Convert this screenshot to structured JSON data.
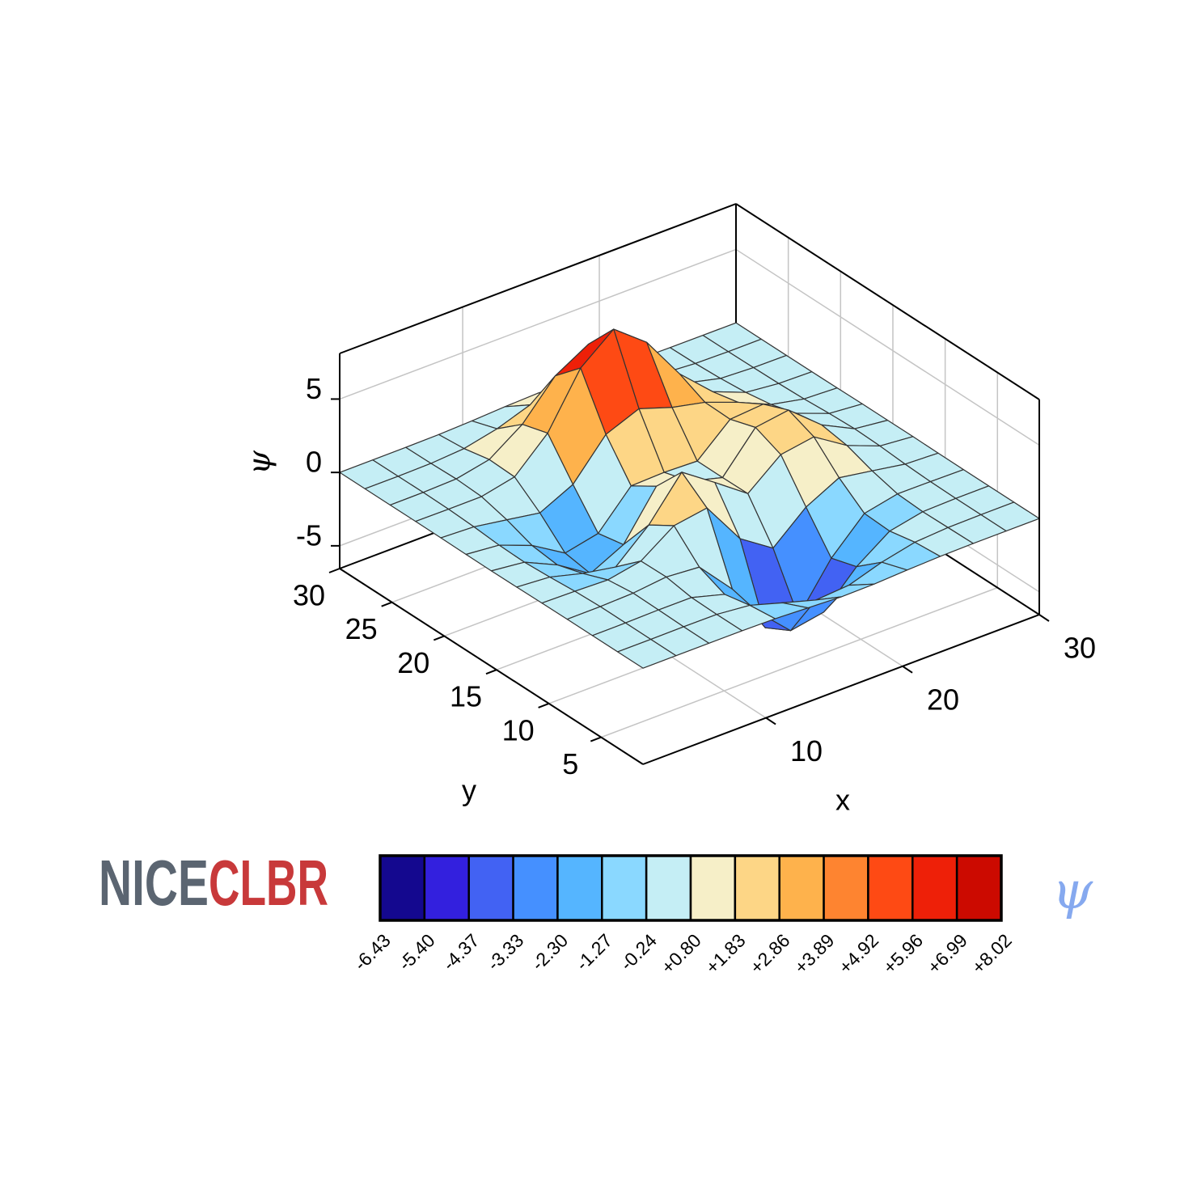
{
  "chart_data": {
    "type": "surface",
    "x": [
      1,
      3.42,
      5.83,
      8.25,
      10.67,
      13.08,
      15.5,
      17.92,
      20.33,
      22.75,
      25.17,
      27.58,
      30
    ],
    "y": [
      1,
      3.42,
      5.83,
      8.25,
      10.67,
      13.08,
      15.5,
      17.92,
      20.33,
      22.75,
      25.17,
      27.58,
      30
    ],
    "z": [
      [
        0,
        0,
        0,
        0,
        -0.03,
        -0.14,
        -0.24,
        -0.22,
        -0.11,
        -0.03,
        0,
        0,
        0
      ],
      [
        0,
        0,
        0.01,
        0,
        -0.23,
        -0.91,
        -1.57,
        -1.41,
        -0.69,
        -0.18,
        -0.03,
        0,
        0
      ],
      [
        0,
        0.01,
        0.05,
        0.04,
        -0.59,
        -2.64,
        -4.76,
        -4.35,
        -2.1,
        -0.53,
        -0.06,
        0,
        0
      ],
      [
        0,
        0.01,
        0.08,
        0.33,
        0.15,
        -2.19,
        -5.68,
        -5.76,
        -2.64,
        -0.44,
        0.04,
        0.03,
        0
      ],
      [
        -0.01,
        -0.06,
        -0.13,
        0.3,
        1.86,
        2.22,
        -0.72,
        -2.22,
        -0.27,
        0.88,
        0.5,
        0.11,
        0.01
      ],
      [
        -0.03,
        -0.2,
        -0.8,
        -1.21,
        0.8,
        3.55,
        2.0,
        0.39,
        2.2,
        2.56,
        1.12,
        0.24,
        0.03
      ],
      [
        -0.04,
        -0.3,
        -1.33,
        -2.77,
        -1.65,
        1.48,
        0.98,
        0.37,
        2.94,
        3.27,
        1.41,
        0.3,
        0.03
      ],
      [
        -0.03,
        -0.25,
        -1.12,
        -2.49,
        -2.0,
        0.39,
        0.46,
        0.38,
        2.38,
        2.56,
        1.09,
        0.23,
        0.03
      ],
      [
        -0.01,
        -0.11,
        -0.48,
        -0.86,
        0.23,
        2.79,
        3.69,
        2.93,
        2.43,
        1.58,
        0.58,
        0.11,
        0.01
      ],
      [
        0,
        -0.02,
        -0.01,
        0.48,
        2.61,
        6.2,
        8.0,
        6.25,
        3.25,
        1.19,
        0.29,
        0.05,
        0
      ],
      [
        0,
        0.01,
        0.08,
        0.55,
        2.1,
        4.56,
        5.86,
        4.57,
        2.21,
        0.68,
        0.13,
        0.02,
        0
      ],
      [
        0,
        0,
        0.03,
        0.19,
        0.69,
        1.47,
        1.88,
        1.47,
        0.7,
        0.2,
        0.04,
        0,
        0
      ],
      [
        0,
        0,
        0.01,
        0.03,
        0.11,
        0.23,
        0.3,
        0.23,
        0.11,
        0.03,
        0.01,
        0,
        0
      ]
    ],
    "xlim": [
      1,
      30
    ],
    "ylim": [
      1,
      30
    ],
    "zlim": [
      -6.55,
      8.11
    ],
    "xticks": [
      10,
      20,
      30
    ],
    "yticks": [
      5,
      10,
      15,
      20,
      25,
      30
    ],
    "zticks": [
      -5,
      0,
      5
    ],
    "xlabel": "x",
    "ylabel": "y",
    "zlabel": "ψ",
    "grid": true,
    "edge_color": "#333333",
    "colorbar": {
      "label": "ψ",
      "ticks": [
        {
          "value": -6.43,
          "label": "-6.43"
        },
        {
          "value": -5.4,
          "label": "-5.40"
        },
        {
          "value": -4.37,
          "label": "-4.37"
        },
        {
          "value": -3.33,
          "label": "-3.33"
        },
        {
          "value": -2.3,
          "label": "-2.30"
        },
        {
          "value": -1.27,
          "label": "-1.27"
        },
        {
          "value": -0.24,
          "label": "-0.24"
        },
        {
          "value": 0.8,
          "label": "+0.80"
        },
        {
          "value": 1.83,
          "label": "+1.83"
        },
        {
          "value": 2.86,
          "label": "+2.86"
        },
        {
          "value": 3.89,
          "label": "+3.89"
        },
        {
          "value": 4.92,
          "label": "+4.92"
        },
        {
          "value": 5.96,
          "label": "+5.96"
        },
        {
          "value": 6.99,
          "label": "+6.99"
        },
        {
          "value": 8.02,
          "label": "+8.02"
        }
      ],
      "colors": [
        "#14088f",
        "#3320de",
        "#4262f3",
        "#4590ff",
        "#55b5ff",
        "#8ad8ff",
        "#c5eef5",
        "#f6efc8",
        "#fdd686",
        "#feb24c",
        "#fe8430",
        "#fe4a14",
        "#ee2008",
        "#cc0a00"
      ]
    },
    "brand": [
      "NICE",
      "CLBR"
    ]
  }
}
